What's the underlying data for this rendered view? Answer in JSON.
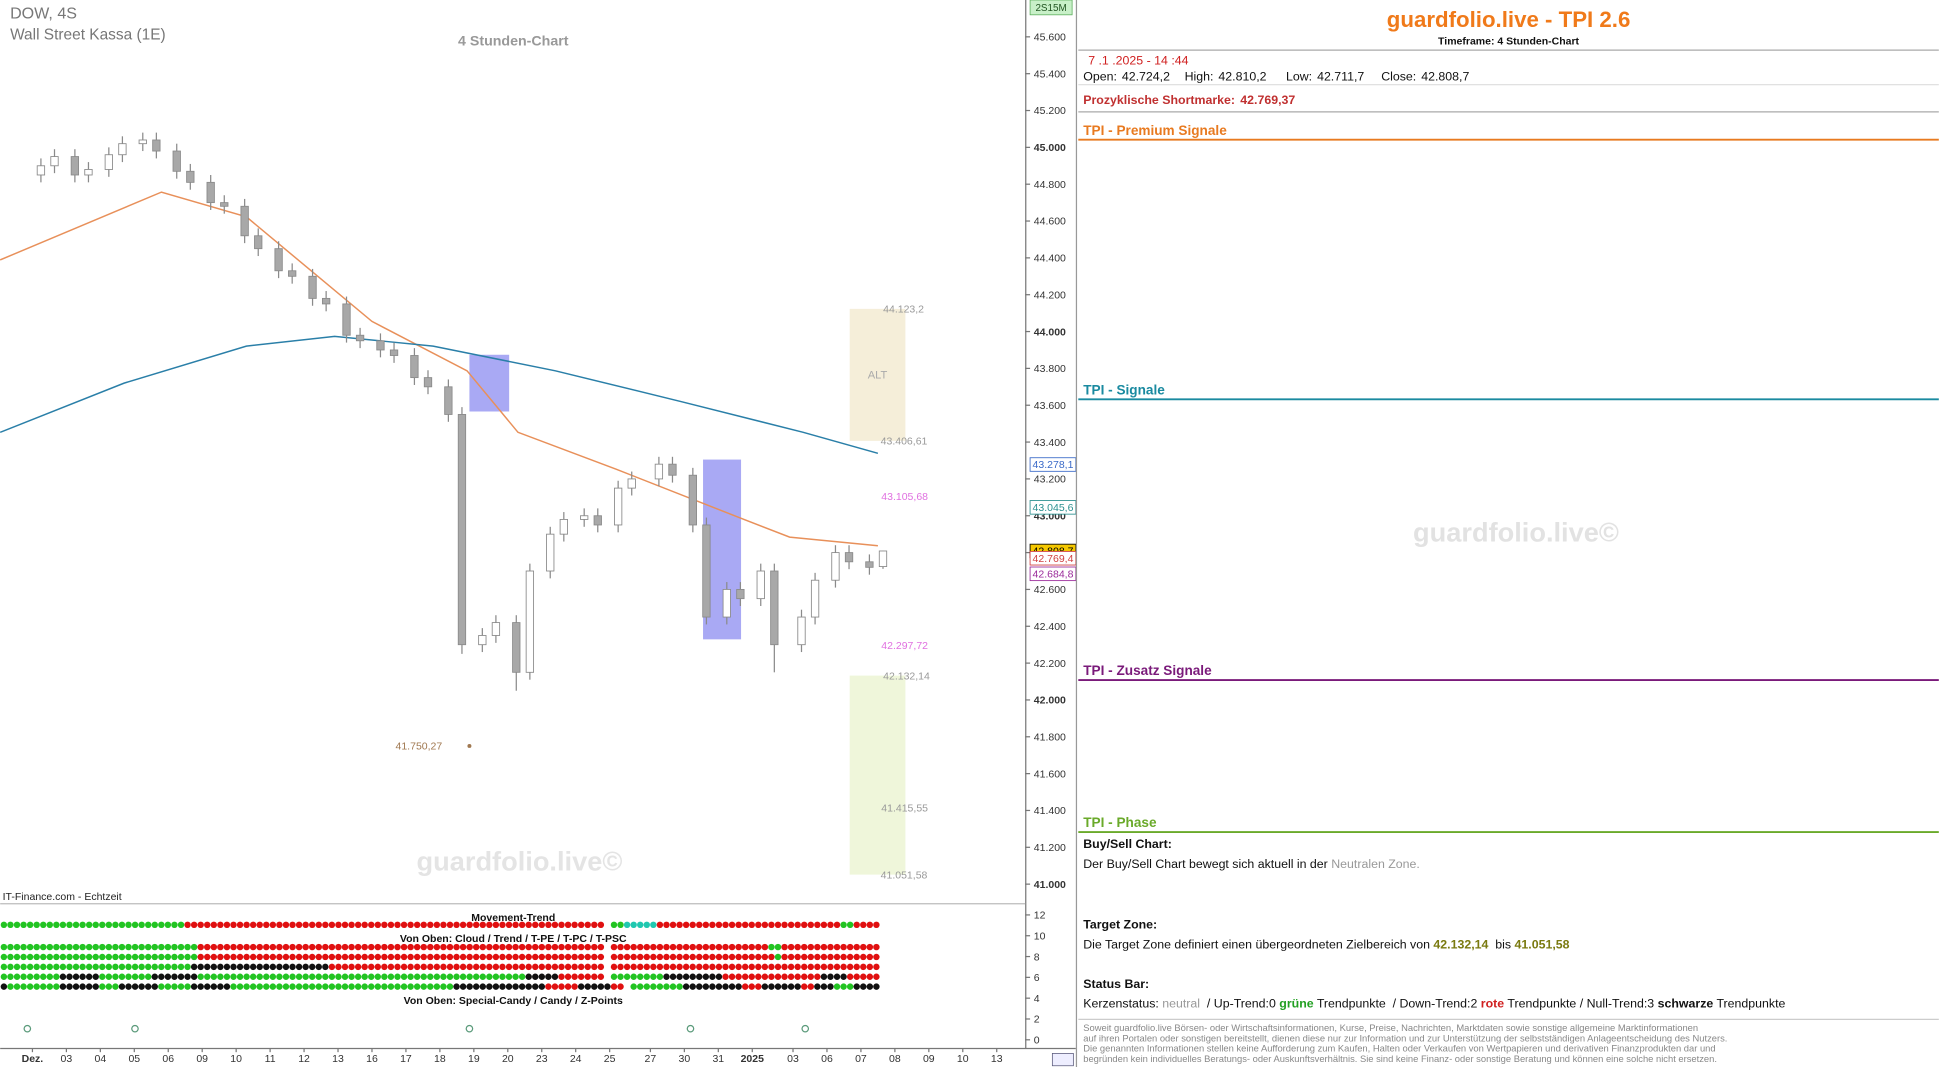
{
  "chart_data": {
    "type": "candlestick",
    "title": "DOW, 4S",
    "subtitle": "Wall Street Kassa (1E)",
    "timeframe": "4 Stunden-Chart",
    "watermark": "guardfolio.live©",
    "source": "IT-Finance.com - Echtzeit",
    "interval_badge": "2S15M",
    "x": [
      0.25,
      0.65,
      1.25,
      1.65,
      2.25,
      2.65,
      3.25,
      3.65,
      4.25,
      4.65,
      5.25,
      5.65,
      6.25,
      6.65,
      7.25,
      7.65,
      8.25,
      8.65,
      9.25,
      9.65,
      10.25,
      10.65,
      11.25,
      11.65,
      12.25,
      12.65,
      13.25,
      13.65,
      14.25,
      14.65,
      15.25,
      15.65,
      16.25,
      16.65,
      17.25,
      17.65,
      18.45,
      18.85,
      19.45,
      19.85,
      20.45,
      20.85,
      21.45,
      21.85,
      22.65,
      23.05,
      23.65,
      24.05,
      24.65,
      25.05
    ],
    "open": [
      44850,
      44900,
      44950,
      44850,
      44880,
      44960,
      45020,
      45040,
      44980,
      44870,
      44810,
      44700,
      44680,
      44520,
      44450,
      44330,
      44300,
      44180,
      44150,
      43980,
      43950,
      43900,
      43870,
      43750,
      43700,
      43550,
      42300,
      42350,
      42420,
      42150,
      42700,
      42900,
      42980,
      43000,
      42950,
      43150,
      43200,
      43280,
      43220,
      42950,
      42450,
      42600,
      42550,
      42700,
      42300,
      42450,
      42650,
      42800,
      42750,
      42724.2
    ],
    "high": [
      44940,
      44990,
      44990,
      44920,
      45000,
      45060,
      45080,
      45080,
      45020,
      44910,
      44850,
      44740,
      44720,
      44560,
      44490,
      44370,
      44340,
      44220,
      44190,
      44020,
      43990,
      43940,
      43910,
      43790,
      43740,
      43590,
      42390,
      42460,
      42460,
      42740,
      42940,
      43020,
      43040,
      43040,
      43190,
      43240,
      43320,
      43320,
      43260,
      42990,
      42640,
      42640,
      42740,
      42740,
      42490,
      42690,
      42840,
      42840,
      42790,
      42810.2
    ],
    "low": [
      44810,
      44860,
      44810,
      44810,
      44840,
      44920,
      44980,
      44940,
      44830,
      44770,
      44660,
      44640,
      44480,
      44410,
      44290,
      44260,
      44140,
      44110,
      43940,
      43910,
      43860,
      43830,
      43710,
      43660,
      43510,
      42250,
      42260,
      42310,
      42050,
      42110,
      42660,
      42860,
      42940,
      42910,
      42910,
      43110,
      43160,
      43180,
      42910,
      42410,
      42410,
      42510,
      42510,
      42150,
      42260,
      42410,
      42610,
      42710,
      42680,
      42711.7
    ],
    "close": [
      44900,
      44950,
      44850,
      44880,
      44960,
      45020,
      45040,
      44980,
      44870,
      44810,
      44700,
      44680,
      44520,
      44450,
      44330,
      44300,
      44180,
      44150,
      43980,
      43950,
      43900,
      43870,
      43750,
      43700,
      43550,
      42300,
      42350,
      42420,
      42150,
      42700,
      42900,
      42980,
      43000,
      42950,
      43150,
      43200,
      43280,
      43220,
      42950,
      42450,
      42600,
      42550,
      42700,
      42300,
      42450,
      42650,
      42800,
      42750,
      42720,
      42808.7
    ],
    "up_color": "#ffffff",
    "down_color": "#a8a8a8",
    "wick_color": "#8a8a8a",
    "xlim": [
      -0.95,
      29.2
    ],
    "xticks": [
      {
        "value": 0,
        "label": "Dez."
      },
      {
        "value": 1,
        "label": "03"
      },
      {
        "value": 2,
        "label": "04"
      },
      {
        "value": 3,
        "label": "05"
      },
      {
        "value": 4,
        "label": "06"
      },
      {
        "value": 5,
        "label": "09"
      },
      {
        "value": 6,
        "label": "10"
      },
      {
        "value": 7,
        "label": "11"
      },
      {
        "value": 8,
        "label": "12"
      },
      {
        "value": 9,
        "label": "13"
      },
      {
        "value": 10,
        "label": "16"
      },
      {
        "value": 11,
        "label": "17"
      },
      {
        "value": 12,
        "label": "18"
      },
      {
        "value": 13,
        "label": "19"
      },
      {
        "value": 14,
        "label": "20"
      },
      {
        "value": 15,
        "label": "23"
      },
      {
        "value": 16,
        "label": "24"
      },
      {
        "value": 17,
        "label": "25"
      },
      {
        "value": 18.2,
        "label": "27"
      },
      {
        "value": 19.2,
        "label": "30"
      },
      {
        "value": 20.2,
        "label": "31"
      },
      {
        "value": 21.2,
        "label": "2025"
      },
      {
        "value": 22.4,
        "label": "03"
      },
      {
        "value": 23.4,
        "label": "06"
      },
      {
        "value": 24.4,
        "label": "07"
      },
      {
        "value": 25.4,
        "label": "08"
      },
      {
        "value": 26.4,
        "label": "09"
      },
      {
        "value": 27.4,
        "label": "10"
      },
      {
        "value": 28.4,
        "label": "13"
      }
    ],
    "ylim": [
      40900,
      45800
    ],
    "yticks": [
      {
        "value": 41000,
        "label": "41.000"
      },
      {
        "value": 41200,
        "label": "41.200"
      },
      {
        "value": 41400,
        "label": "41.400"
      },
      {
        "value": 41600,
        "label": "41.600"
      },
      {
        "value": 41800,
        "label": "41.800"
      },
      {
        "value": 42000,
        "label": "42.000"
      },
      {
        "value": 42200,
        "label": "42.200"
      },
      {
        "value": 42400,
        "label": "42.400"
      },
      {
        "value": 42600,
        "label": "42.600"
      },
      {
        "value": 42800,
        "label": "42.800"
      },
      {
        "value": 43000,
        "label": "43.000"
      },
      {
        "value": 43200,
        "label": "43.200"
      },
      {
        "value": 43400,
        "label": "43.400"
      },
      {
        "value": 43600,
        "label": "43.600"
      },
      {
        "value": 43800,
        "label": "43.800"
      },
      {
        "value": 44000,
        "label": "44.000"
      },
      {
        "value": 44200,
        "label": "44.200"
      },
      {
        "value": 44400,
        "label": "44.400"
      },
      {
        "value": 44600,
        "label": "44.600"
      },
      {
        "value": 44800,
        "label": "44.800"
      },
      {
        "value": 45000,
        "label": "45.000"
      },
      {
        "value": 45200,
        "label": "45.200"
      },
      {
        "value": 45400,
        "label": "45.400"
      },
      {
        "value": 45600,
        "label": "45.600"
      }
    ],
    "lines": [
      {
        "color": "#e8905a",
        "x": [
          -0.95,
          3.8,
          6.3,
          10,
          12.8,
          14.3,
          17.2,
          20.9,
          22.3,
          24.9
        ],
        "values": [
          44389,
          44757,
          44623,
          44055,
          43787,
          43453,
          43252,
          42984,
          42884,
          42837
        ]
      },
      {
        "color": "#2a7fa8",
        "x": [
          -0.95,
          2.7,
          6.3,
          8.9,
          11.8,
          15.4,
          19.1,
          22.7,
          24.9
        ],
        "values": [
          43453,
          43720,
          43921,
          43974,
          43921,
          43787,
          43620,
          43453,
          43339
        ]
      }
    ],
    "signal_boxes": [
      {
        "color": "#8c8cf0",
        "x": [
          12.87,
          14.04
        ],
        "y": [
          43566,
          43874
        ]
      },
      {
        "color": "#8c8cf0",
        "x": [
          19.75,
          20.87
        ],
        "y": [
          42329,
          43305
        ]
      }
    ],
    "target_zones": [
      {
        "label": "ALT",
        "color": "#f5eed9",
        "x": [
          24.07,
          25.71
        ],
        "top": {
          "value": 44123.2,
          "label": "44.123,2"
        },
        "bottom": {
          "value": 43406.61,
          "label": "43.406,61"
        }
      },
      {
        "color": "#eff6da",
        "x": [
          24.07,
          25.71
        ],
        "top": {
          "value": 42132.14,
          "label": "42.132,14"
        },
        "bottom": {
          "value": 41051.58,
          "label": "41.051,58"
        }
      }
    ],
    "levels": [
      {
        "value": 41415.55,
        "label": "41.415,55",
        "x": 25.0,
        "color": "#999999"
      },
      {
        "value": 43105.68,
        "label": "43.105,68",
        "x": 25.0,
        "color": "#e070e0"
      },
      {
        "value": 42297.72,
        "label": "42.297,72",
        "x": 25.0,
        "color": "#e070e0"
      },
      {
        "value": 41750.27,
        "label": "41.750,27",
        "x": 12.87,
        "color": "#a07850"
      }
    ],
    "price_tags": [
      {
        "value": 43278.1,
        "label": "43.278,1",
        "color": "#3a6ac8",
        "fill": "#ffffff"
      },
      {
        "value": 43045.6,
        "label": "43.045,6",
        "color": "#2a9090",
        "fill": "#ffffff"
      },
      {
        "value": 42808.7,
        "label": "42.808,7",
        "color": "#000000",
        "fill": "#f5c800"
      },
      {
        "value": 42769.4,
        "label": "42.769,4",
        "color": "#d04040",
        "fill": "#ffffff"
      },
      {
        "value": 42684.8,
        "label": "42.684,8",
        "color": "#9a2a9a",
        "fill": "#ffffff"
      }
    ],
    "indicator": {
      "titles": [
        "Movement-Trend",
        "Von Oben: Cloud / Trend / T-PE / T-PC / T-PSC",
        "Von Oben: Special-Candy / Candy / Z-Points"
      ],
      "ylim": [
        0,
        12
      ],
      "yticks": [
        0,
        2,
        4,
        6,
        8,
        10,
        12
      ],
      "rows": [
        [
          {
            "color": "#22c422",
            "count": 28
          },
          {
            "color": "#e01010",
            "count": 64
          },
          {
            "color": null,
            "count": 1
          },
          {
            "color": "#22c422",
            "count": 2
          },
          {
            "color": "#20c8b0",
            "count": 5
          },
          {
            "color": "#e01010",
            "count": 28
          },
          {
            "color": "#22c422",
            "count": 2
          },
          {
            "color": "#e01010",
            "count": 4
          }
        ],
        [
          {
            "color": "#22c422",
            "count": 30
          },
          {
            "color": "#e01010",
            "count": 62
          },
          {
            "color": null,
            "count": 1
          },
          {
            "color": "#e01010",
            "count": 24
          },
          {
            "color": "#22c422",
            "count": 2
          },
          {
            "color": "#e01010",
            "count": 15
          }
        ],
        [
          {
            "color": "#22c422",
            "count": 30
          },
          {
            "color": "#e01010",
            "count": 62
          },
          {
            "color": null,
            "count": 1
          },
          {
            "color": "#e01010",
            "count": 25
          },
          {
            "color": "#22c422",
            "count": 1
          },
          {
            "color": "#e01010",
            "count": 15
          }
        ],
        [
          {
            "color": "#22c422",
            "count": 29
          },
          {
            "color": "#111111",
            "count": 21
          },
          {
            "color": "#e01010",
            "count": 42
          },
          {
            "color": null,
            "count": 1
          },
          {
            "color": "#e01010",
            "count": 41
          }
        ],
        [
          {
            "color": "#22c422",
            "count": 9
          },
          {
            "color": "#111111",
            "count": 6
          },
          {
            "color": "#22c422",
            "count": 8
          },
          {
            "color": "#111111",
            "count": 7
          },
          {
            "color": "#22c422",
            "count": 50
          },
          {
            "color": "#111111",
            "count": 5
          },
          {
            "color": "#e01010",
            "count": 7
          },
          {
            "color": null,
            "count": 1
          },
          {
            "color": "#22c422",
            "count": 8
          },
          {
            "color": "#111111",
            "count": 9
          },
          {
            "color": "#e01010",
            "count": 15
          },
          {
            "color": "#111111",
            "count": 4
          },
          {
            "color": "#e01010",
            "count": 5
          }
        ],
        [
          {
            "color": "#111111",
            "count": 1
          },
          {
            "color": "#22c422",
            "count": 8
          },
          {
            "color": "#111111",
            "count": 6
          },
          {
            "color": "#22c422",
            "count": 3
          },
          {
            "color": "#111111",
            "count": 6
          },
          {
            "color": "#22c422",
            "count": 5
          },
          {
            "color": "#111111",
            "count": 6
          },
          {
            "color": "#22c422",
            "count": 34
          },
          {
            "color": "#111111",
            "count": 14
          },
          {
            "color": "#e01010",
            "count": 5
          },
          {
            "color": "#111111",
            "count": 5
          },
          {
            "color": "#e01010",
            "count": 2
          },
          {
            "color": null,
            "count": 1
          },
          {
            "color": "#22c422",
            "count": 8
          },
          {
            "color": "#111111",
            "count": 9
          },
          {
            "color": "#e01010",
            "count": 3
          },
          {
            "color": "#111111",
            "count": 6
          },
          {
            "color": "#e01010",
            "count": 2
          },
          {
            "color": "#111111",
            "count": 3
          },
          {
            "color": "#22c422",
            "count": 3
          },
          {
            "color": "#111111",
            "count": 4
          }
        ]
      ],
      "z_points": {
        "color": "#5a9a7a",
        "x": [
          -0.15,
          3.02,
          12.87,
          19.38,
          22.76
        ]
      }
    }
  },
  "panel": {
    "title": "guardfolio.live - TPI 2.6",
    "timeframe": "Timeframe: 4 Stunden-Chart",
    "timestamp": "7 .1 .2025 - 14 :44",
    "ohlc": [
      {
        "label": "Open:",
        "value": "42.724,2"
      },
      {
        "label": "High:",
        "value": "42.810,2"
      },
      {
        "label": "Low:",
        "value": "42.711,7"
      },
      {
        "label": "Close:",
        "value": "42.808,7"
      }
    ],
    "shortmark": {
      "label": "Prozyklische Shortmarke:",
      "value": "42.769,37"
    },
    "sections": [
      {
        "title": "TPI - Premium Signale",
        "color": "#e87a20"
      },
      {
        "title": "TPI - Signale",
        "color": "#1a8aa0"
      },
      {
        "title": "TPI - Zusatz Signale",
        "color": "#7a1a7a"
      },
      {
        "title": "TPI - Phase",
        "color": "#6aaa2a"
      }
    ],
    "buy_sell": {
      "heading": "Buy/Sell Chart:",
      "text": "Der Buy/Sell Chart bewegt sich aktuell in der ",
      "zone": "Neutralen Zone."
    },
    "target": {
      "heading": "Target Zone:",
      "text": "Die Target Zone definiert einen übergeordneten Zielbereich von ",
      "from": "42.132,14",
      "between": "  bis ",
      "to": "41.051,58"
    },
    "status": {
      "heading": "Status Bar:",
      "parts": [
        "Kerzenstatus: ",
        "neutral",
        "  / Up-Trend:0 ",
        "grüne",
        " Trendpunkte  / Down-Trend:2 ",
        "rote",
        " Trendpunkte / Null-Trend:3 ",
        "schwarze",
        " Trendpunkte"
      ]
    },
    "watermark": "guardfolio.live©",
    "disclaimer": [
      "Soweit guardfolio.live Börsen- oder Wirtschaftsinformationen, Kurse, Preise, Nachrichten, Marktdaten sowie sonstige allgemeine Marktinformationen",
      "auf ihren Portalen oder sonstigen bereitstellt, dienen diese nur zur Information und zur Unterstützung der selbstständigen Anlageentscheidung des Nutzers.",
      "Die genannten Informationen stellen keine Aufforderung zum Kaufen, Halten oder Verkaufen von Wertpapieren und derivativen Finanzprodukten dar und",
      "begründen kein individuelles Beratungs- oder Auskunftsverhältnis. Sie sind keine Finanz- oder sonstige Beratung und können eine solche nicht ersetzen."
    ]
  }
}
